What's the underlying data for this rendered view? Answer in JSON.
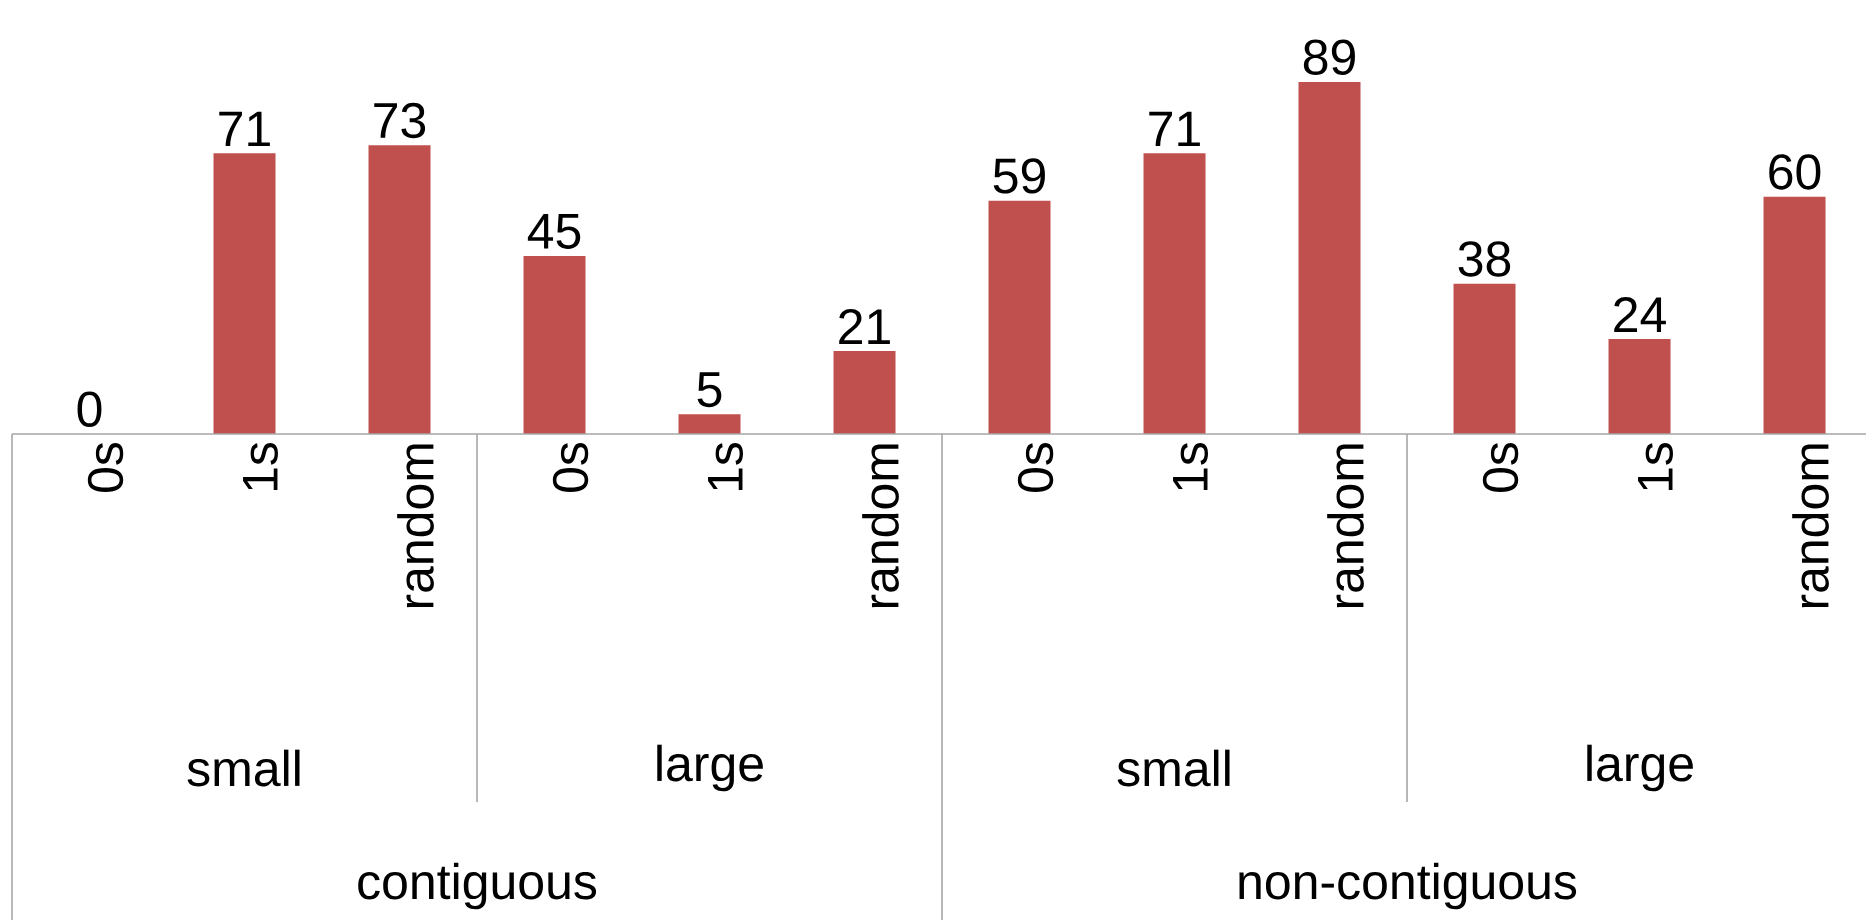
{
  "chart_data": {
    "type": "bar",
    "categories": [
      "0s",
      "1s",
      "random",
      "0s",
      "1s",
      "random",
      "0s",
      "1s",
      "random",
      "0s",
      "1s",
      "random"
    ],
    "values": [
      0,
      71,
      73,
      45,
      5,
      21,
      59,
      71,
      89,
      38,
      24,
      60
    ],
    "color": "#c0504d",
    "tick_labels": "x",
    "data_labels": true,
    "annotations": [
      "small",
      "large",
      "small",
      "large",
      "contiguous",
      "non-contiguous"
    ]
  }
}
